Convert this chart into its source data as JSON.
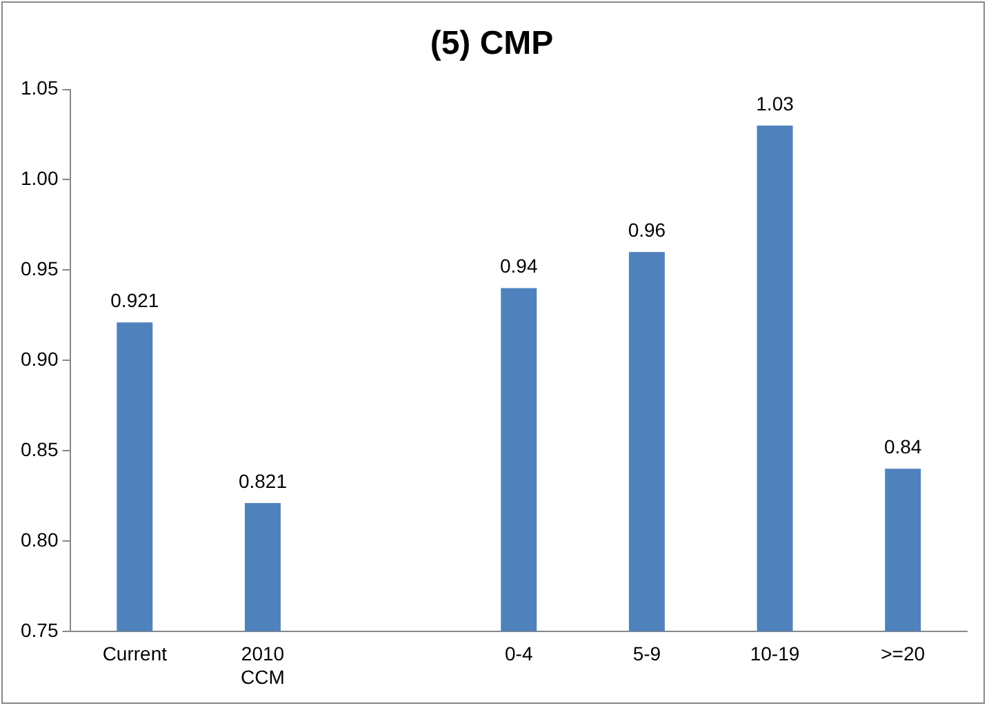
{
  "chart_data": {
    "type": "bar",
    "title": "(5) CMP",
    "categories": [
      "Current",
      "2010 CCM",
      null,
      "0-4",
      "5-9",
      "10-19",
      ">=20"
    ],
    "values": [
      0.921,
      0.821,
      null,
      0.94,
      0.96,
      1.03,
      0.84
    ],
    "color": "#4f81bd",
    "ylim": [
      0.75,
      1.05
    ],
    "yticks": [
      {
        "value": 0.75,
        "label": "0.75"
      },
      {
        "value": 0.8,
        "label": "0.80"
      },
      {
        "value": 0.85,
        "label": "0.85"
      },
      {
        "value": 0.9,
        "label": "0.90"
      },
      {
        "value": 0.95,
        "label": "0.95"
      },
      {
        "value": 1.0,
        "label": "1.00"
      },
      {
        "value": 1.05,
        "label": "1.05"
      }
    ],
    "grid": false,
    "legend": false,
    "data_labels": true
  }
}
